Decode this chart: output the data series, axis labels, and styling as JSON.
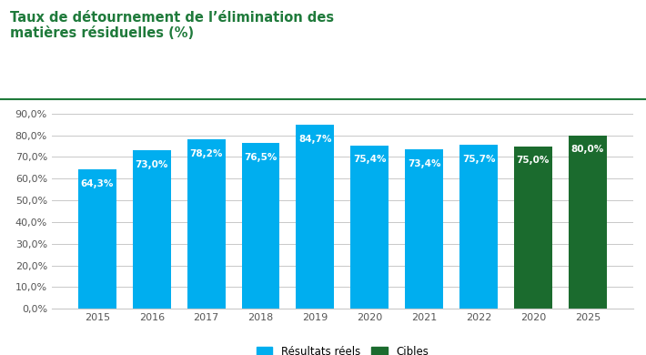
{
  "title_line1": "Taux de détournement de l’élimination des",
  "title_line2": "matières résiduelles (%)",
  "title_color": "#1F7A3B",
  "title_fontsize": 10.5,
  "categories": [
    "2015",
    "2016",
    "2017",
    "2018",
    "2019",
    "2020",
    "2021",
    "2022",
    "2020",
    "2025"
  ],
  "values": [
    64.3,
    73.0,
    78.2,
    76.5,
    84.7,
    75.4,
    73.4,
    75.7,
    75.0,
    80.0
  ],
  "bar_colors": [
    "#00AEEF",
    "#00AEEF",
    "#00AEEF",
    "#00AEEF",
    "#00AEEF",
    "#00AEEF",
    "#00AEEF",
    "#00AEEF",
    "#1B6B2E",
    "#1B6B2E"
  ],
  "labels": [
    "64,3%",
    "73,0%",
    "78,2%",
    "76,5%",
    "84,7%",
    "75,4%",
    "73,4%",
    "75,7%",
    "75,0%",
    "80,0%"
  ],
  "ylim": [
    0,
    90
  ],
  "yticks": [
    0,
    10,
    20,
    30,
    40,
    50,
    60,
    70,
    80,
    90
  ],
  "ytick_labels": [
    "0,0%",
    "10,0%",
    "20,0%",
    "30,0%",
    "40,0%",
    "50,0%",
    "60,0%",
    "70,0%",
    "80,0%",
    "90,0%"
  ],
  "legend_blue_label": "Résultats réels",
  "legend_green_label": "Cibles",
  "legend_blue_color": "#00AEEF",
  "legend_green_color": "#1B6B2E",
  "background_color": "#FFFFFF",
  "grid_color": "#C8C8C8",
  "label_fontsize": 7.5,
  "label_color": "#FFFFFF",
  "axis_label_fontsize": 8,
  "separator_color": "#1F7A3B",
  "bar_width": 0.7
}
